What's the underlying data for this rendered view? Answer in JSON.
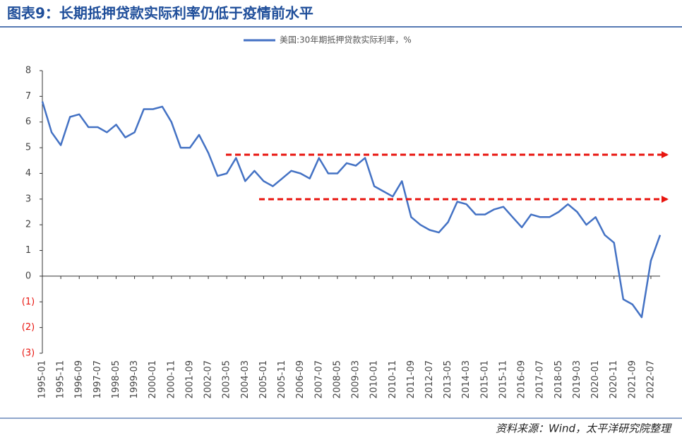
{
  "chart_data": {
    "type": "line",
    "title": "图表9：长期抵押贷款实际利率仍低于疫情前水平",
    "source": "资料来源：Wind，太平洋研究院整理",
    "x": [
      "1995-01",
      "1995-06",
      "1995-11",
      "1996-04",
      "1996-09",
      "1997-02",
      "1997-07",
      "1997-12",
      "1998-05",
      "1998-10",
      "1999-03",
      "1999-08",
      "2000-01",
      "2000-06",
      "2000-11",
      "2001-04",
      "2001-09",
      "2002-02",
      "2002-07",
      "2002-12",
      "2003-05",
      "2003-10",
      "2004-03",
      "2004-08",
      "2005-01",
      "2005-06",
      "2005-11",
      "2006-04",
      "2006-09",
      "2007-02",
      "2007-07",
      "2007-12",
      "2008-05",
      "2008-10",
      "2009-03",
      "2009-08",
      "2010-01",
      "2010-06",
      "2010-11",
      "2011-04",
      "2011-09",
      "2012-02",
      "2012-07",
      "2012-12",
      "2013-05",
      "2013-10",
      "2014-03",
      "2014-08",
      "2015-01",
      "2015-06",
      "2015-11",
      "2016-04",
      "2016-09",
      "2017-02",
      "2017-07",
      "2017-12",
      "2018-05",
      "2018-10",
      "2019-03",
      "2019-08",
      "2020-01",
      "2020-06",
      "2020-11",
      "2021-04",
      "2021-09",
      "2022-02",
      "2022-07",
      "2022-12"
    ],
    "series": [
      {
        "name": "美国:30年期抵押贷款实际利率，%",
        "color": "#4472c4",
        "values": [
          6.8,
          5.6,
          5.1,
          6.2,
          6.3,
          5.8,
          5.8,
          5.6,
          5.9,
          5.4,
          5.6,
          6.5,
          6.5,
          6.6,
          6.0,
          5.0,
          5.0,
          5.5,
          4.8,
          3.9,
          4.0,
          4.6,
          3.7,
          4.1,
          3.7,
          3.5,
          3.8,
          4.1,
          4.0,
          3.8,
          4.6,
          4.0,
          4.0,
          4.4,
          4.3,
          4.6,
          3.5,
          3.3,
          3.1,
          3.7,
          2.3,
          2.0,
          1.8,
          1.7,
          2.1,
          2.9,
          2.8,
          2.4,
          2.4,
          2.6,
          2.7,
          2.3,
          1.9,
          2.4,
          2.3,
          2.3,
          2.5,
          2.8,
          2.5,
          2.0,
          2.3,
          1.6,
          1.3,
          -0.9,
          -1.1,
          -1.6,
          0.6,
          1.6
        ]
      }
    ],
    "xlim": [
      "1995-01",
      "2022-12"
    ],
    "xticks": [
      "1995-01",
      "1995-11",
      "1996-09",
      "1997-07",
      "1998-05",
      "1999-03",
      "2000-01",
      "2000-11",
      "2001-09",
      "2002-07",
      "2003-05",
      "2004-03",
      "2005-01",
      "2005-11",
      "2006-09",
      "2007-07",
      "2008-05",
      "2009-03",
      "2010-01",
      "2010-11",
      "2011-09",
      "2012-07",
      "2013-05",
      "2014-03",
      "2015-01",
      "2015-11",
      "2016-09",
      "2017-07",
      "2018-05",
      "2019-03",
      "2020-01",
      "2020-11",
      "2021-09",
      "2022-07"
    ],
    "ylim": [
      -3,
      8
    ],
    "yticks": [
      8,
      7,
      6,
      5,
      4,
      3,
      2,
      1,
      0,
      {
        "value": -1,
        "label": "(1)"
      },
      {
        "value": -2,
        "label": "(2)"
      },
      {
        "value": -3,
        "label": "(3)"
      }
    ],
    "legend": "top"
  }
}
